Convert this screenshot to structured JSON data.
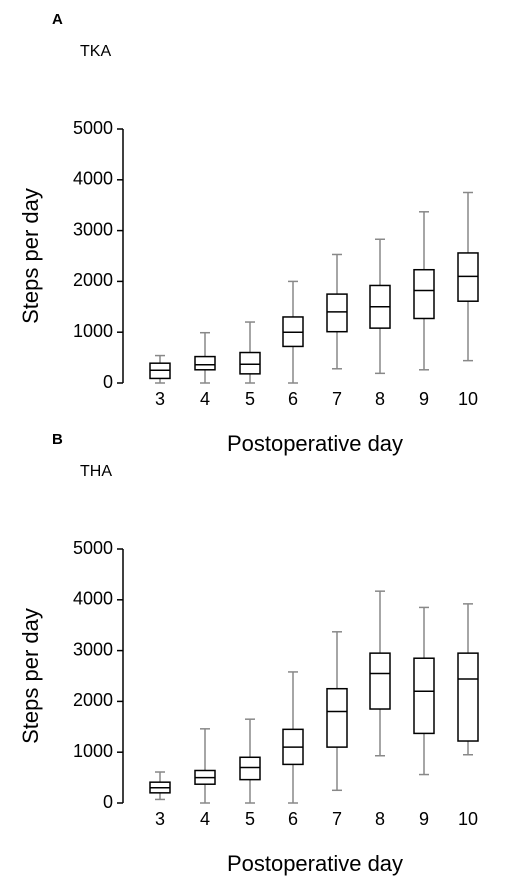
{
  "chart_data": [
    {
      "type": "box",
      "panel_label": "A",
      "title": "TKA",
      "ylabel": "Steps per day",
      "xlabel": "Postoperative day",
      "categories": [
        "3",
        "4",
        "5",
        "6",
        "7",
        "8",
        "9",
        "10"
      ],
      "min": [
        0,
        0,
        0,
        0,
        280,
        190,
        260,
        440
      ],
      "q1": [
        90,
        260,
        180,
        720,
        1010,
        1080,
        1270,
        1610
      ],
      "median": [
        250,
        360,
        370,
        1000,
        1400,
        1500,
        1820,
        2100
      ],
      "q3": [
        390,
        520,
        600,
        1300,
        1750,
        1920,
        2230,
        2560
      ],
      "max": [
        540,
        990,
        1200,
        2000,
        2530,
        2830,
        3370,
        3750
      ],
      "box_color": "#000000",
      "whisker_color": "#888888",
      "ylim": [
        0,
        5000
      ],
      "yticks": [
        0,
        1000,
        2000,
        3000,
        4000,
        5000
      ]
    },
    {
      "type": "box",
      "panel_label": "B",
      "title": "THA",
      "ylabel": "Steps per day",
      "xlabel": "Postoperative day",
      "categories": [
        "3",
        "4",
        "5",
        "6",
        "7",
        "8",
        "9",
        "10"
      ],
      "min": [
        70,
        0,
        0,
        0,
        250,
        930,
        560,
        950
      ],
      "q1": [
        200,
        370,
        460,
        760,
        1100,
        1850,
        1370,
        1220
      ],
      "median": [
        300,
        500,
        700,
        1100,
        1800,
        2550,
        2200,
        2440
      ],
      "q3": [
        410,
        640,
        900,
        1450,
        2250,
        2950,
        2850,
        2950
      ],
      "max": [
        610,
        1460,
        1650,
        2580,
        3370,
        4170,
        3850,
        3920
      ],
      "box_color": "#000000",
      "whisker_color": "#888888",
      "ylim": [
        0,
        5000
      ],
      "yticks": [
        0,
        1000,
        2000,
        3000,
        4000,
        5000
      ]
    }
  ]
}
